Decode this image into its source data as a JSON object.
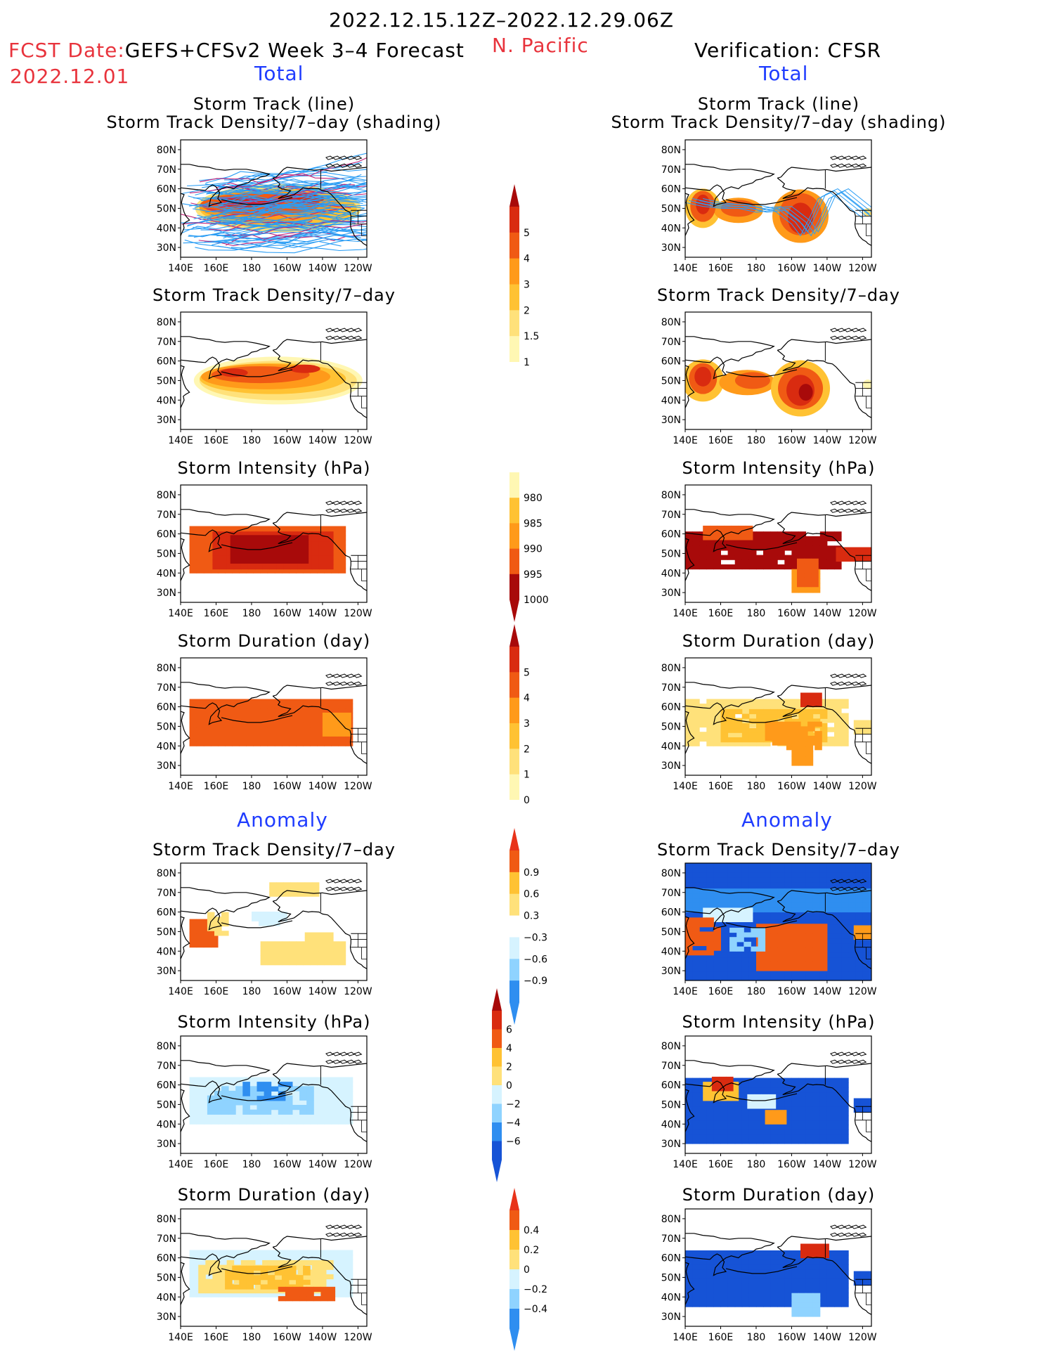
{
  "header": {
    "period": "2022.12.15.12Z–2022.12.29.06Z",
    "fcst_label": "FCST Date:",
    "fcst_source": "GEFS+CFSv2 Week 3–4 Forecast",
    "fcst_date": "2022.12.01",
    "region": "N. Pacific",
    "verification": "Verification: CFSR",
    "total_left": "Total",
    "total_right": "Total",
    "anomaly_left": "Anomaly",
    "anomaly_right": "Anomaly"
  },
  "axes": {
    "lat_labels": [
      "80N",
      "70N",
      "60N",
      "50N",
      "40N",
      "30N"
    ],
    "lon_labels": [
      "140E",
      "160E",
      "180",
      "160W",
      "140W",
      "120W"
    ]
  },
  "panels": {
    "track_line": "Storm Track (line)",
    "track_shading": "Storm Track Density/7–day (shading)",
    "density": "Storm Track Density/7–day",
    "intensity": "Storm Intensity (hPa)",
    "duration": "Storm Duration (day)"
  },
  "colorbars": {
    "density": [
      "1",
      "1.5",
      "2",
      "3",
      "4",
      "5"
    ],
    "intensity": [
      "980",
      "985",
      "990",
      "995",
      "1000"
    ],
    "duration": [
      "0",
      "1",
      "2",
      "3",
      "4",
      "5"
    ],
    "anom_density": [
      "−0.9",
      "−0.6",
      "−0.3",
      "0.3",
      "0.6",
      "0.9"
    ],
    "anom_intensity": [
      "−6",
      "−4",
      "−2",
      "0",
      "2",
      "4",
      "6"
    ],
    "anom_duration": [
      "−0.4",
      "−0.2",
      "0",
      "0.2",
      "0.4"
    ]
  },
  "colors": {
    "title_red": "#e8333c",
    "label_blue": "#1f3cff",
    "track_line": "#2a9df4",
    "track_line_dark": "#c0247a"
  }
}
